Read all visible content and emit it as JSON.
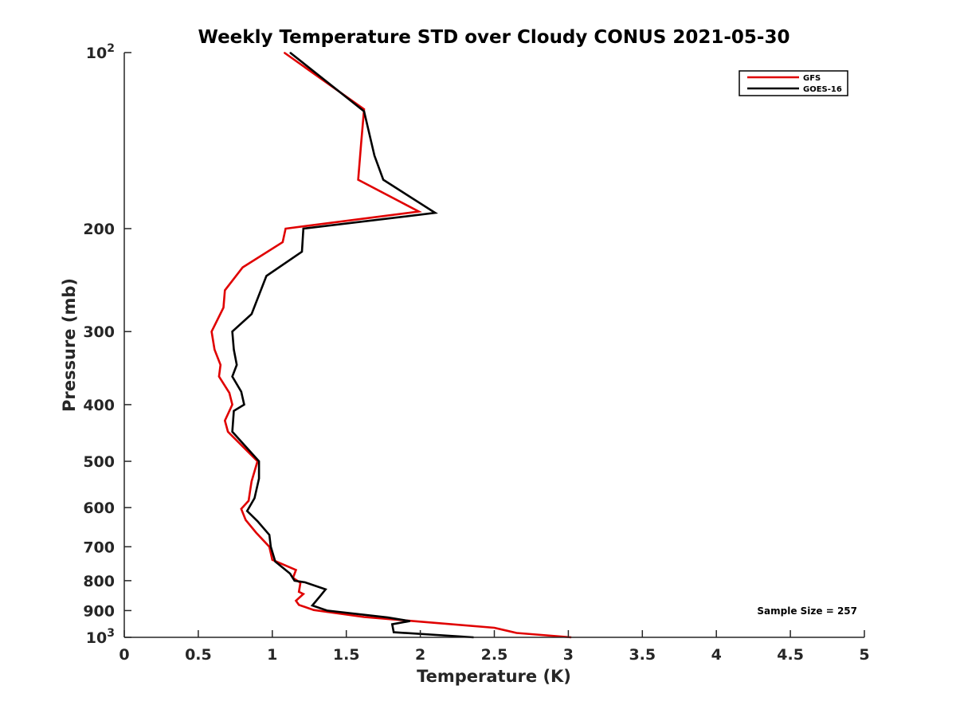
{
  "chart_data": {
    "type": "line",
    "title": "Weekly Temperature STD over Cloudy CONUS 2021-05-30",
    "xlabel": "Temperature (K)",
    "ylabel": "Pressure (mb)",
    "xlim": [
      0,
      5
    ],
    "ylim": [
      1000,
      100
    ],
    "yscale": "log",
    "grid": false,
    "legend_position": "top-right",
    "x_ticks": [
      "0",
      "0.5",
      "1",
      "1.5",
      "2",
      "2.5",
      "3",
      "3.5",
      "4",
      "4.5",
      "5"
    ],
    "y_ticks": [
      {
        "value": 100,
        "label": "10",
        "sup": "2"
      },
      {
        "value": 200,
        "label": "200",
        "sup": ""
      },
      {
        "value": 300,
        "label": "300",
        "sup": ""
      },
      {
        "value": 400,
        "label": "400",
        "sup": ""
      },
      {
        "value": 500,
        "label": "500",
        "sup": ""
      },
      {
        "value": 600,
        "label": "600",
        "sup": ""
      },
      {
        "value": 700,
        "label": "700",
        "sup": ""
      },
      {
        "value": 800,
        "label": "800",
        "sup": ""
      },
      {
        "value": 900,
        "label": "900",
        "sup": ""
      },
      {
        "value": 1000,
        "label": "10",
        "sup": "3"
      }
    ],
    "series": [
      {
        "name": "GFS",
        "color": "#e00000",
        "points": [
          [
            1.08,
            100
          ],
          [
            1.62,
            125
          ],
          [
            1.6,
            143
          ],
          [
            1.58,
            165
          ],
          [
            1.99,
            187
          ],
          [
            1.09,
            200
          ],
          [
            1.07,
            211
          ],
          [
            0.8,
            233
          ],
          [
            0.68,
            255
          ],
          [
            0.67,
            273
          ],
          [
            0.59,
            300
          ],
          [
            0.61,
            322
          ],
          [
            0.65,
            342
          ],
          [
            0.64,
            358
          ],
          [
            0.71,
            382
          ],
          [
            0.73,
            400
          ],
          [
            0.68,
            426
          ],
          [
            0.7,
            445
          ],
          [
            0.9,
            500
          ],
          [
            0.86,
            541
          ],
          [
            0.85,
            562
          ],
          [
            0.84,
            584
          ],
          [
            0.79,
            603
          ],
          [
            0.82,
            630
          ],
          [
            0.89,
            662
          ],
          [
            0.98,
            700
          ],
          [
            1.0,
            737
          ],
          [
            1.16,
            767
          ],
          [
            1.14,
            791
          ],
          [
            1.19,
            807
          ],
          [
            1.18,
            836
          ],
          [
            1.21,
            843
          ],
          [
            1.16,
            866
          ],
          [
            1.18,
            880
          ],
          [
            1.28,
            898
          ],
          [
            1.62,
            923
          ],
          [
            2.0,
            940
          ],
          [
            2.5,
            963
          ],
          [
            2.65,
            983
          ],
          [
            3.02,
            1000
          ]
        ]
      },
      {
        "name": "GOES-16",
        "color": "#000000",
        "points": [
          [
            1.12,
            100
          ],
          [
            1.62,
            126
          ],
          [
            1.69,
            150
          ],
          [
            1.75,
            165
          ],
          [
            2.1,
            188
          ],
          [
            1.21,
            200
          ],
          [
            1.2,
            219
          ],
          [
            0.96,
            241
          ],
          [
            0.86,
            280
          ],
          [
            0.73,
            300
          ],
          [
            0.74,
            322
          ],
          [
            0.76,
            342
          ],
          [
            0.73,
            358
          ],
          [
            0.79,
            380
          ],
          [
            0.81,
            400
          ],
          [
            0.74,
            410
          ],
          [
            0.73,
            445
          ],
          [
            0.91,
            500
          ],
          [
            0.91,
            535
          ],
          [
            0.88,
            578
          ],
          [
            0.83,
            608
          ],
          [
            0.9,
            633
          ],
          [
            0.98,
            668
          ],
          [
            0.99,
            700
          ],
          [
            1.02,
            742
          ],
          [
            1.12,
            778
          ],
          [
            1.15,
            800
          ],
          [
            1.22,
            805
          ],
          [
            1.36,
            828
          ],
          [
            1.32,
            852
          ],
          [
            1.27,
            882
          ],
          [
            1.37,
            900
          ],
          [
            1.78,
            925
          ],
          [
            1.93,
            938
          ],
          [
            1.81,
            950
          ],
          [
            1.82,
            980
          ],
          [
            2.36,
            1000
          ]
        ]
      }
    ],
    "annotations": [
      "Sample Size = 257"
    ]
  }
}
